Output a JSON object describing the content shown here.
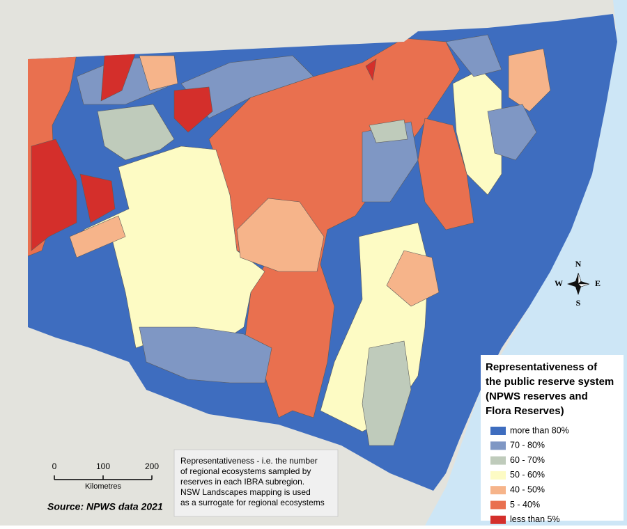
{
  "legend": {
    "title": [
      "Representativeness of",
      "the public reserve system",
      "(NPWS reserves and",
      "Flora Reserves)"
    ],
    "items": [
      {
        "label": "more than 80%",
        "color": "#3e6dbf"
      },
      {
        "label": "70 - 80%",
        "color": "#7f97c4"
      },
      {
        "label": "60 - 70%",
        "color": "#bfcbbb"
      },
      {
        "label": "50 - 60%",
        "color": "#fdfbc4"
      },
      {
        "label": "40 - 50%",
        "color": "#f6b48a"
      },
      {
        "label": "5 - 40%",
        "color": "#e9704f"
      },
      {
        "label": "less than 5%",
        "color": "#d42f2b"
      }
    ]
  },
  "note": [
    "Representativeness - i.e. the number",
    "of regional ecosystems sampled by",
    "reserves in each IBRA subregion.",
    "NSW Landscapes mapping is used",
    "as a surrogate for regional ecosystems"
  ],
  "scale": {
    "ticks": [
      0,
      100,
      200
    ],
    "unit": "Kilometres"
  },
  "source": "Source: NPWS data 2021",
  "compass": {
    "north": "N",
    "east": "E",
    "south": "S",
    "west": "W"
  }
}
